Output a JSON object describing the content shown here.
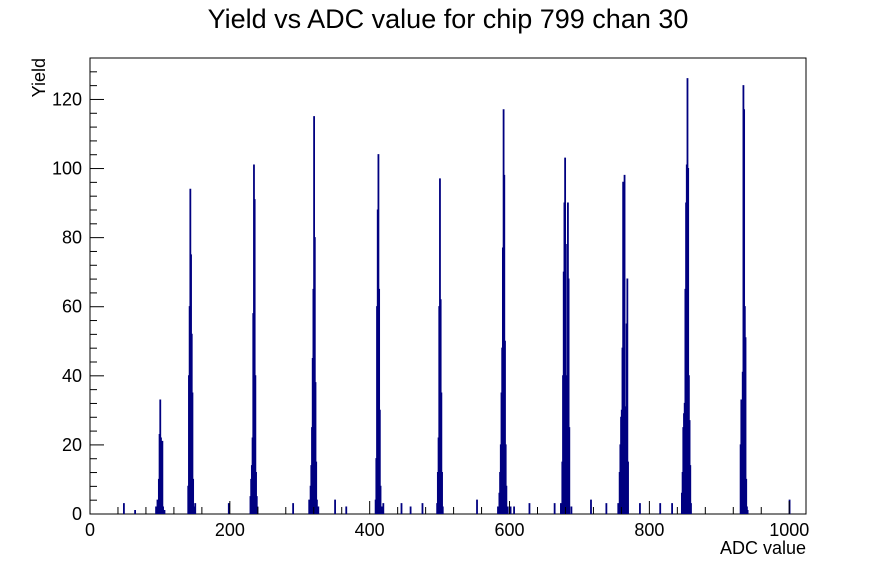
{
  "chart_data": {
    "type": "bar",
    "title": "Yield vs ADC value for chip 799 chan 30",
    "xlabel": "ADC value",
    "ylabel": "Yield",
    "xlim": [
      0,
      1024
    ],
    "ylim": [
      0,
      132
    ],
    "x_ticks": [
      0,
      200,
      400,
      600,
      800,
      1000
    ],
    "y_ticks": [
      0,
      20,
      40,
      60,
      80,
      100,
      120
    ],
    "grid": false,
    "legend": "none",
    "series": [
      {
        "x": [
          48,
          64,
          94,
          96,
          98,
          99,
          100,
          101,
          102,
          103,
          104,
          106,
          140,
          141,
          142,
          143,
          144,
          145,
          146,
          147,
          148,
          149,
          150,
          198,
          229,
          230,
          231,
          232,
          233,
          234,
          235,
          236,
          237,
          238,
          239,
          290,
          313,
          315,
          316,
          317,
          318,
          319,
          320,
          321,
          322,
          323,
          324,
          326,
          350,
          366,
          408,
          409,
          410,
          411,
          412,
          413,
          414,
          415,
          416,
          417,
          418,
          419,
          445,
          458,
          475,
          496,
          497,
          498,
          499,
          500,
          501,
          502,
          503,
          504,
          553,
          583,
          585,
          586,
          587,
          588,
          589,
          590,
          591,
          592,
          593,
          594,
          595,
          597,
          601,
          606,
          628,
          664,
          673,
          675,
          676,
          677,
          678,
          679,
          680,
          681,
          682,
          683,
          684,
          685,
          688,
          716,
          738,
          755,
          757,
          758,
          759,
          760,
          761,
          762,
          763,
          764,
          766,
          767,
          768,
          769,
          786,
          815,
          832,
          846,
          847,
          848,
          849,
          850,
          851,
          852,
          853,
          854,
          855,
          856,
          857,
          858,
          859,
          930,
          931,
          932,
          933,
          934,
          935,
          936,
          937,
          938,
          939,
          940,
          1000
        ],
        "values": [
          3,
          1,
          2,
          4,
          10,
          23,
          33,
          22,
          19,
          21,
          2,
          1,
          8,
          40,
          60,
          94,
          75,
          52,
          35,
          10,
          2,
          1,
          3,
          3,
          5,
          10,
          14,
          22,
          58,
          101,
          91,
          40,
          12,
          5,
          2,
          3,
          4,
          8,
          14,
          25,
          45,
          65,
          115,
          80,
          38,
          15,
          4,
          2,
          4,
          2,
          4,
          16,
          60,
          88,
          104,
          65,
          30,
          8,
          2,
          1,
          2,
          3,
          3,
          2,
          3,
          3,
          12,
          22,
          60,
          97,
          62,
          35,
          12,
          2,
          4,
          2,
          6,
          12,
          20,
          35,
          48,
          77,
          117,
          98,
          50,
          20,
          8,
          2,
          2,
          2,
          3,
          3,
          3,
          15,
          40,
          70,
          90,
          103,
          78,
          40,
          28,
          90,
          68,
          25,
          2,
          4,
          3,
          3,
          12,
          20,
          28,
          30,
          48,
          96,
          95,
          98,
          31,
          55,
          68,
          15,
          3,
          3,
          3,
          6,
          12,
          25,
          29,
          32,
          65,
          90,
          101,
          126,
          100,
          40,
          27,
          14,
          3,
          20,
          33,
          28,
          41,
          124,
          117,
          60,
          51,
          10,
          2,
          1,
          4
        ]
      }
    ],
    "colors": {
      "line": "#000080",
      "axis": "#000000",
      "background": "#ffffff"
    }
  }
}
